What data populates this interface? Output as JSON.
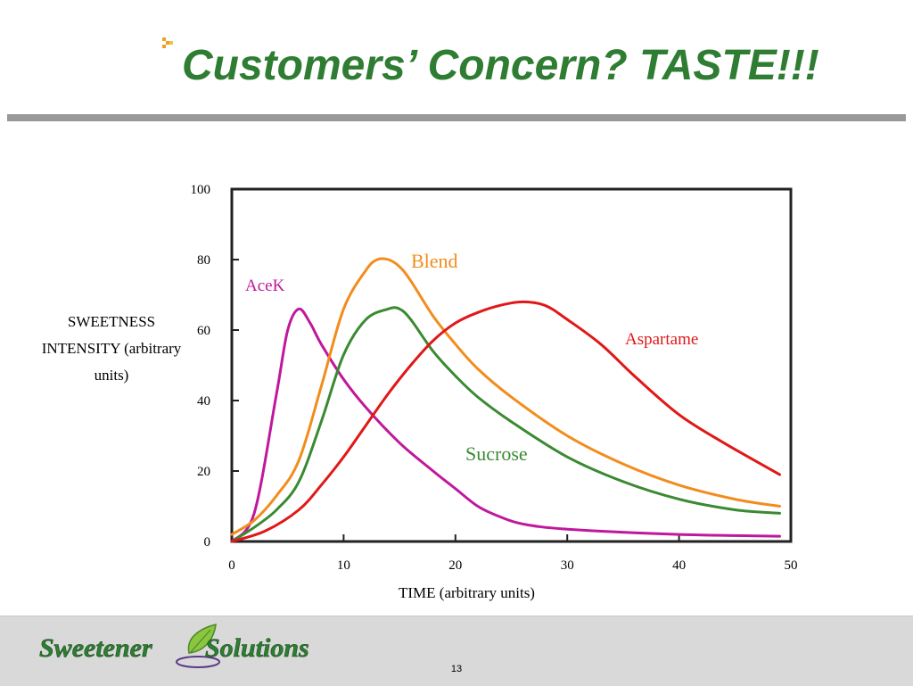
{
  "slide": {
    "title": "Customers’ Concern?  TASTE!!!",
    "page_number": "13",
    "colors": {
      "title": "#2e7d32",
      "bullet": "#f0a020",
      "rule": "#999999",
      "footer": "#d9d9d9"
    }
  },
  "logo": {
    "text_left": "Sweetener",
    "text_right": "Solutions"
  },
  "chart_data": {
    "type": "line",
    "title": "",
    "xlabel": "TIME (arbitrary units)",
    "ylabel": "SWEETNESS INTENSITY (arbitrary units)",
    "xlim": [
      0,
      50
    ],
    "ylim": [
      0,
      100
    ],
    "xticks": [
      0,
      10,
      20,
      30,
      40,
      50
    ],
    "yticks": [
      0,
      20,
      40,
      60,
      80,
      100
    ],
    "grid": false,
    "series": [
      {
        "name": "AceK",
        "color": "#c0189c",
        "x": [
          0,
          2,
          4,
          5,
          6,
          7,
          8,
          10,
          12,
          15,
          18,
          20,
          22,
          24,
          26,
          30,
          40,
          49
        ],
        "y": [
          0,
          8,
          42,
          60,
          66,
          62,
          56,
          46,
          38,
          28,
          20,
          15,
          10,
          7,
          5,
          3.5,
          2,
          1.5
        ]
      },
      {
        "name": "Blend",
        "color": "#f28c1c",
        "x": [
          0,
          2,
          4,
          6,
          8,
          10,
          12,
          13,
          14,
          15,
          16,
          18,
          20,
          22,
          25,
          30,
          35,
          40,
          45,
          49
        ],
        "y": [
          2,
          6,
          13,
          23,
          44,
          66,
          77,
          80,
          80,
          78,
          74,
          64,
          56,
          49,
          41,
          30,
          22,
          16,
          12,
          10
        ]
      },
      {
        "name": "Sucrose",
        "color": "#3a8a32",
        "x": [
          0,
          2,
          4,
          6,
          8,
          10,
          12,
          14,
          15,
          16,
          18,
          20,
          22,
          25,
          30,
          35,
          40,
          45,
          49
        ],
        "y": [
          0,
          4,
          9,
          17,
          34,
          53,
          63,
          66,
          66,
          63,
          54,
          47,
          41,
          34,
          24,
          17,
          12,
          9,
          8
        ]
      },
      {
        "name": "Aspartame",
        "color": "#e01818",
        "x": [
          0,
          3,
          6,
          8,
          10,
          12,
          14,
          16,
          18,
          20,
          22,
          24,
          26,
          28,
          30,
          33,
          36,
          40,
          44,
          49
        ],
        "y": [
          0,
          3,
          9,
          16,
          24,
          33,
          42,
          50,
          57,
          62,
          65,
          67,
          68,
          67,
          63,
          56,
          47,
          36,
          28,
          19
        ]
      }
    ]
  }
}
